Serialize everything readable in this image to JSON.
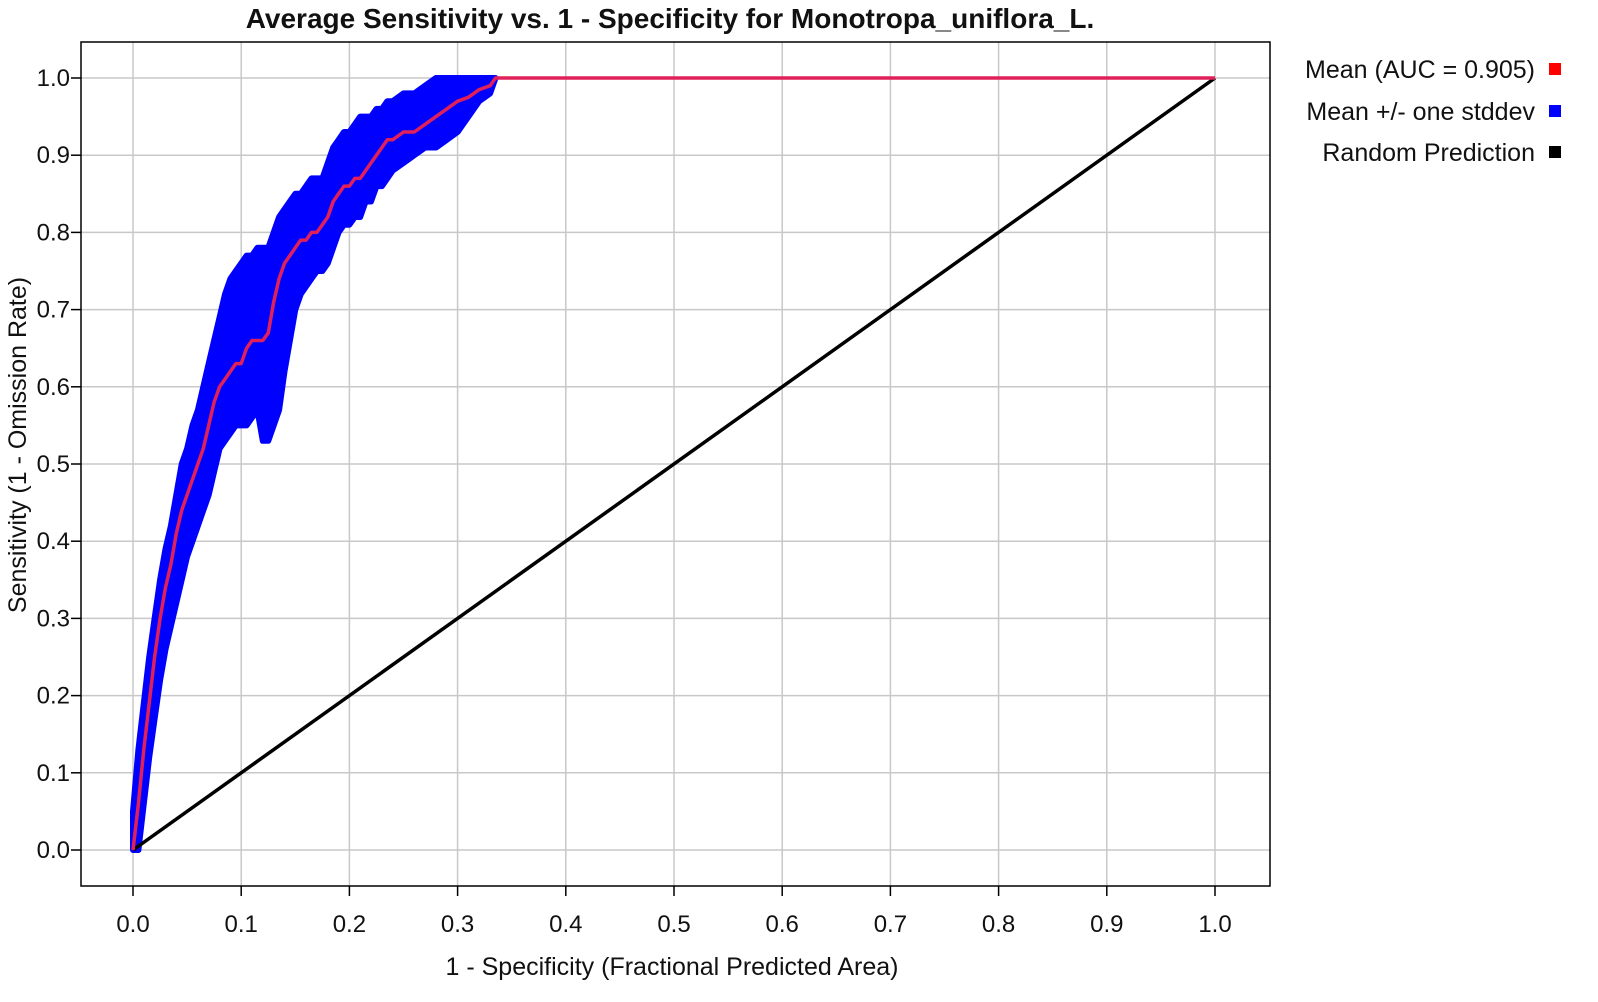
{
  "chart_data": {
    "type": "line",
    "title": "Average Sensitivity vs. 1 - Specificity for Monotropa_uniflora_L.",
    "xlabel": "1 - Specificity (Fractional Predicted Area)",
    "ylabel": "Sensitivity (1 - Omission Rate)",
    "xlim": [
      0,
      1
    ],
    "ylim": [
      0,
      1
    ],
    "grid": true,
    "legend_position": "right",
    "x_ticks": [
      "0.0",
      "0.1",
      "0.2",
      "0.3",
      "0.4",
      "0.5",
      "0.6",
      "0.7",
      "0.8",
      "0.9",
      "1.0"
    ],
    "y_ticks": [
      "0.0",
      "0.1",
      "0.2",
      "0.3",
      "0.4",
      "0.5",
      "0.6",
      "0.7",
      "0.8",
      "0.9",
      "1.0"
    ],
    "series": [
      {
        "name": "Mean (AUC = 0.905)",
        "color": "#ff0000",
        "line_color": "#e0205a",
        "x": [
          0,
          0.005,
          0.01,
          0.015,
          0.02,
          0.025,
          0.03,
          0.035,
          0.04,
          0.045,
          0.05,
          0.055,
          0.06,
          0.065,
          0.07,
          0.075,
          0.08,
          0.085,
          0.09,
          0.095,
          0.1,
          0.105,
          0.11,
          0.115,
          0.12,
          0.125,
          0.13,
          0.135,
          0.14,
          0.145,
          0.15,
          0.155,
          0.16,
          0.165,
          0.17,
          0.175,
          0.18,
          0.185,
          0.19,
          0.195,
          0.2,
          0.205,
          0.21,
          0.215,
          0.22,
          0.225,
          0.23,
          0.235,
          0.24,
          0.25,
          0.26,
          0.27,
          0.28,
          0.29,
          0.3,
          0.31,
          0.32,
          0.33,
          0.335,
          1.0
        ],
        "y": [
          0,
          0.06,
          0.13,
          0.19,
          0.25,
          0.3,
          0.34,
          0.37,
          0.41,
          0.44,
          0.46,
          0.48,
          0.5,
          0.52,
          0.55,
          0.58,
          0.6,
          0.61,
          0.62,
          0.63,
          0.63,
          0.65,
          0.66,
          0.66,
          0.66,
          0.67,
          0.71,
          0.74,
          0.76,
          0.77,
          0.78,
          0.79,
          0.79,
          0.8,
          0.8,
          0.81,
          0.82,
          0.84,
          0.85,
          0.86,
          0.86,
          0.87,
          0.87,
          0.88,
          0.89,
          0.9,
          0.91,
          0.92,
          0.92,
          0.93,
          0.93,
          0.94,
          0.95,
          0.96,
          0.97,
          0.975,
          0.985,
          0.99,
          1.0,
          1.0
        ]
      },
      {
        "name": "Mean +/- one stddev",
        "color": "#0000ff",
        "x": [
          0,
          0.005,
          0.01,
          0.015,
          0.02,
          0.025,
          0.03,
          0.035,
          0.04,
          0.045,
          0.05,
          0.055,
          0.06,
          0.065,
          0.07,
          0.075,
          0.08,
          0.085,
          0.09,
          0.095,
          0.1,
          0.105,
          0.11,
          0.115,
          0.12,
          0.125,
          0.13,
          0.135,
          0.14,
          0.145,
          0.15,
          0.155,
          0.16,
          0.165,
          0.17,
          0.175,
          0.18,
          0.185,
          0.19,
          0.195,
          0.2,
          0.205,
          0.21,
          0.215,
          0.22,
          0.225,
          0.23,
          0.235,
          0.24,
          0.25,
          0.26,
          0.27,
          0.28,
          0.29,
          0.3,
          0.31,
          0.32,
          0.33,
          0.335
        ],
        "upper": [
          0.05,
          0.13,
          0.19,
          0.25,
          0.3,
          0.35,
          0.39,
          0.42,
          0.46,
          0.5,
          0.52,
          0.55,
          0.57,
          0.6,
          0.63,
          0.66,
          0.69,
          0.72,
          0.74,
          0.75,
          0.76,
          0.77,
          0.77,
          0.78,
          0.78,
          0.78,
          0.8,
          0.82,
          0.83,
          0.84,
          0.85,
          0.85,
          0.86,
          0.87,
          0.87,
          0.87,
          0.89,
          0.91,
          0.92,
          0.93,
          0.93,
          0.94,
          0.95,
          0.95,
          0.95,
          0.96,
          0.96,
          0.97,
          0.97,
          0.98,
          0.98,
          0.99,
          1.0,
          1.0,
          1.0,
          1.0,
          1.0,
          1.0,
          1.0
        ],
        "lower": [
          0,
          0,
          0.06,
          0.12,
          0.17,
          0.22,
          0.26,
          0.29,
          0.32,
          0.35,
          0.38,
          0.4,
          0.42,
          0.44,
          0.46,
          0.49,
          0.52,
          0.53,
          0.54,
          0.55,
          0.55,
          0.55,
          0.56,
          0.57,
          0.53,
          0.53,
          0.55,
          0.57,
          0.62,
          0.66,
          0.7,
          0.72,
          0.73,
          0.74,
          0.75,
          0.75,
          0.76,
          0.78,
          0.8,
          0.81,
          0.81,
          0.82,
          0.82,
          0.84,
          0.84,
          0.86,
          0.86,
          0.87,
          0.88,
          0.89,
          0.9,
          0.91,
          0.91,
          0.92,
          0.93,
          0.95,
          0.97,
          0.98,
          1.0
        ]
      },
      {
        "name": "Random Prediction",
        "color": "#000000",
        "x": [
          0,
          1
        ],
        "y": [
          0,
          1
        ]
      }
    ],
    "legend": [
      {
        "label": "Mean (AUC = 0.905)",
        "color": "#ff0000"
      },
      {
        "label": "Mean +/- one stddev",
        "color": "#0000ff"
      },
      {
        "label": "Random Prediction",
        "color": "#000000"
      }
    ]
  }
}
